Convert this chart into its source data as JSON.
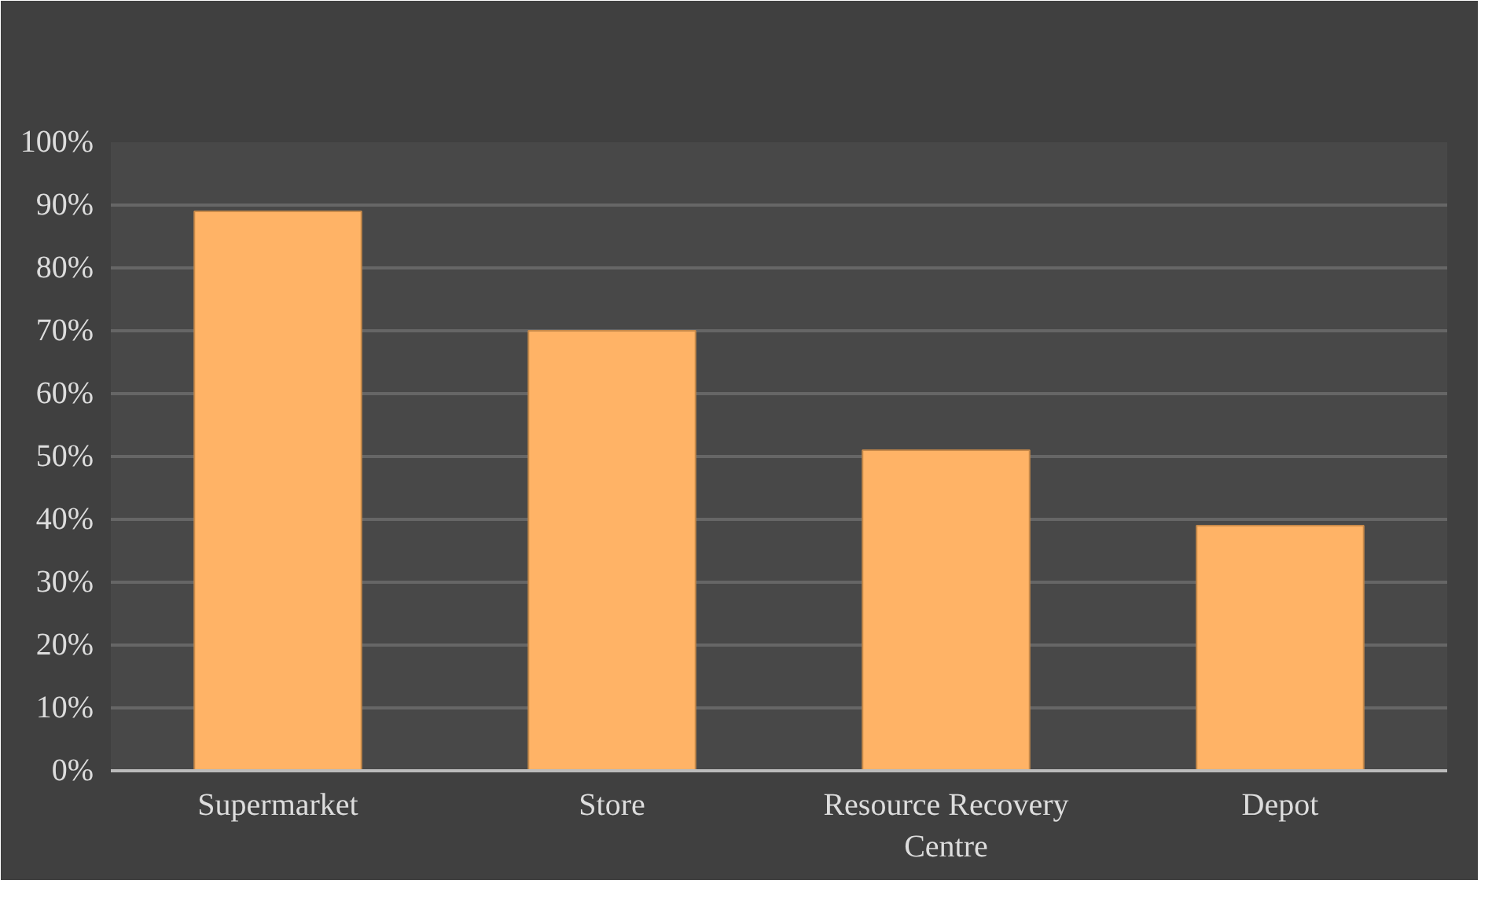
{
  "chart_data": {
    "type": "bar",
    "categories": [
      "Supermarket",
      "Store",
      "Resource Recovery\nCentre",
      "Depot"
    ],
    "values": [
      89,
      70,
      51,
      39
    ],
    "color": "#ffb366",
    "ylim": [
      0,
      100
    ],
    "yticks": [
      {
        "value": 0,
        "label": "0%"
      },
      {
        "value": 10,
        "label": "10%"
      },
      {
        "value": 20,
        "label": "20%"
      },
      {
        "value": 30,
        "label": "30%"
      },
      {
        "value": 40,
        "label": "40%"
      },
      {
        "value": 50,
        "label": "50%"
      },
      {
        "value": 60,
        "label": "60%"
      },
      {
        "value": 70,
        "label": "70%"
      },
      {
        "value": 80,
        "label": "80%"
      },
      {
        "value": 90,
        "label": "90%"
      },
      {
        "value": 100,
        "label": "100%"
      }
    ],
    "grid": "y"
  }
}
